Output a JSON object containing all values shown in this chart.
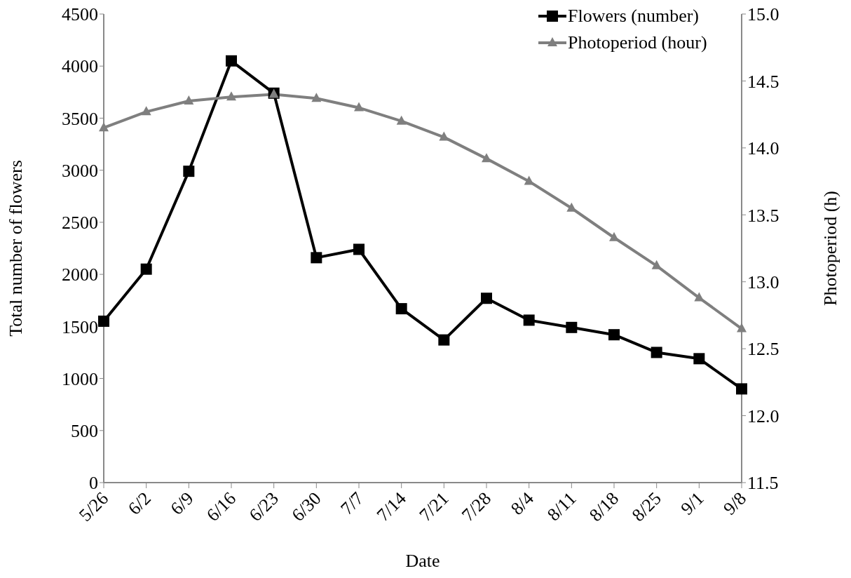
{
  "chart_data": {
    "type": "line",
    "xlabel": "Date",
    "ylabel": "Total number of flowers",
    "y2label": "Photoperiod (h)",
    "categories": [
      "5/26",
      "6/2",
      "6/9",
      "6/16",
      "6/23",
      "6/30",
      "7/7",
      "7/14",
      "7/21",
      "7/28",
      "8/4",
      "8/11",
      "8/18",
      "8/25",
      "9/1",
      "9/8"
    ],
    "series": [
      {
        "name": "Flowers (number)",
        "color": "#000000",
        "marker": "square",
        "values": [
          1550,
          2050,
          2990,
          4050,
          3740,
          2160,
          2240,
          1670,
          1370,
          1770,
          1560,
          1490,
          1420,
          1250,
          1190,
          900
        ]
      },
      {
        "name": "Photoperiod (hour)",
        "color": "#7f7f7f",
        "marker": "triangle",
        "axis": "y2",
        "values": [
          14.15,
          14.27,
          14.35,
          14.38,
          14.4,
          14.37,
          14.3,
          14.2,
          14.08,
          13.92,
          13.75,
          13.55,
          13.33,
          13.12,
          12.88,
          12.65
        ]
      }
    ],
    "ylim": [
      0,
      4500
    ],
    "yticks": [
      0,
      500,
      1000,
      1500,
      2000,
      2500,
      3000,
      3500,
      4000,
      4500
    ],
    "y2lim": [
      11.5,
      15.0
    ],
    "y2ticks": [
      {
        "value": 11.5,
        "label": "11.5"
      },
      {
        "value": 12,
        "label": "12.0"
      },
      {
        "value": 12.5,
        "label": "12.5"
      },
      {
        "value": 13,
        "label": "13.0"
      },
      {
        "value": 13.5,
        "label": "13.5"
      },
      {
        "value": 14,
        "label": "14.0"
      },
      {
        "value": 14.5,
        "label": "14.5"
      },
      {
        "value": 15,
        "label": "15.0"
      }
    ],
    "grid": false,
    "legend": "top right",
    "line_style": "solid"
  }
}
